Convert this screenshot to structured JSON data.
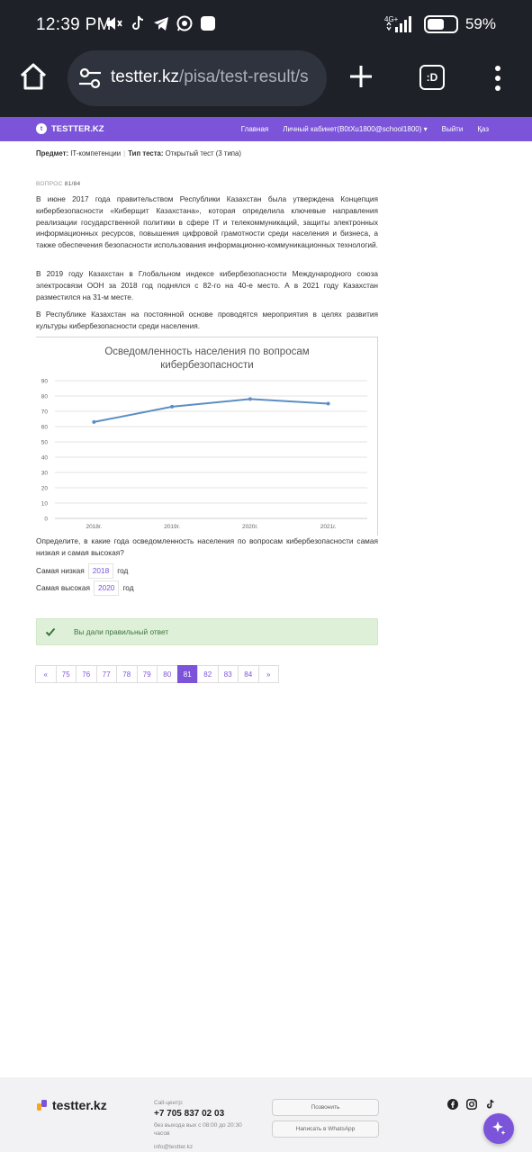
{
  "statusbar": {
    "time": "12:39 PM",
    "network": "4G+",
    "battery_label": "59%",
    "battery_level": 0.59
  },
  "browser": {
    "url_host": "testter.kz",
    "url_rest": "/pisa/test-result/s",
    "tabs_label": ":D"
  },
  "nav": {
    "brand": "TESTTER.KZ",
    "items": [
      "Главная",
      "Личный кабинет(B0tXu1800@school1800) ▾",
      "Выйти",
      "Қаз"
    ]
  },
  "meta": {
    "subject_label": "Предмет:",
    "subject_value": "IT-компетенции",
    "type_label": "Тип теста:",
    "type_value": "Открытый тест (3 типа)"
  },
  "question": {
    "number_label": "ВОПРОС",
    "number_value": "81/84",
    "p1": "В июне 2017 года правительством Республики Казахстан была утверждена Концепция кибербезопасности «Киберщит Казахстана», которая определила ключевые направления реализации государственной политики в сфере IT и телекоммуникаций, защиты электронных информационных ресурсов, повышения цифровой грамотности среди населения и бизнеса, а также обеспечения безопасности использования информационно-коммуникационных технологий.",
    "p2": "В 2019 году Казахстан в Глобальном индексе кибербезопасности Международного союза электросвязи ООН за 2018 год поднялся с 82-го на 40-е место. А в 2021 году Казахстан разместился на 31-м месте.",
    "p3": "В Республике Казахстан на постоянной основе проводятся мероприятия в целях развития культуры кибербезопасности среди населения.",
    "prompt": "Определите, в какие года осведомленность населения по вопросам кибербезопасности самая низкая и самая высокая?",
    "lowest_label": "Самая низкая",
    "lowest_value": "2018",
    "highest_label": "Самая высокая",
    "highest_value": "2020",
    "year_suffix": "год"
  },
  "chart_data": {
    "type": "line",
    "title": "Осведомленность населения по вопросам кибербезопасности",
    "categories": [
      "2018г.",
      "2019г.",
      "2020г.",
      "2021г."
    ],
    "values": [
      63,
      73,
      78,
      75
    ],
    "ylim": [
      0,
      90
    ],
    "yticks": [
      0,
      10,
      20,
      30,
      40,
      50,
      60,
      70,
      80,
      90
    ],
    "grid": true,
    "line_color": "#5b8ec4"
  },
  "result": {
    "message": "Вы дали правильный ответ"
  },
  "pagination": {
    "prev": "«",
    "pages": [
      "75",
      "76",
      "77",
      "78",
      "79",
      "80",
      "81",
      "82",
      "83",
      "84"
    ],
    "active": "81",
    "next": "»"
  },
  "footer": {
    "brand": "testter.kz",
    "callcenter_label": "Call-центр:",
    "phone": "+7 705 837 02 03",
    "hours_line1": "без выхода вых с 08:00 до 20:30",
    "hours_line2": "часов",
    "email": "info@testter.kz",
    "call_button": "Позвонить",
    "whatsapp_button": "Написать в WhatsApp"
  },
  "colors": {
    "accent": "#7b54d9",
    "success_bg": "#dff0d8",
    "success_text": "#3c763d"
  }
}
